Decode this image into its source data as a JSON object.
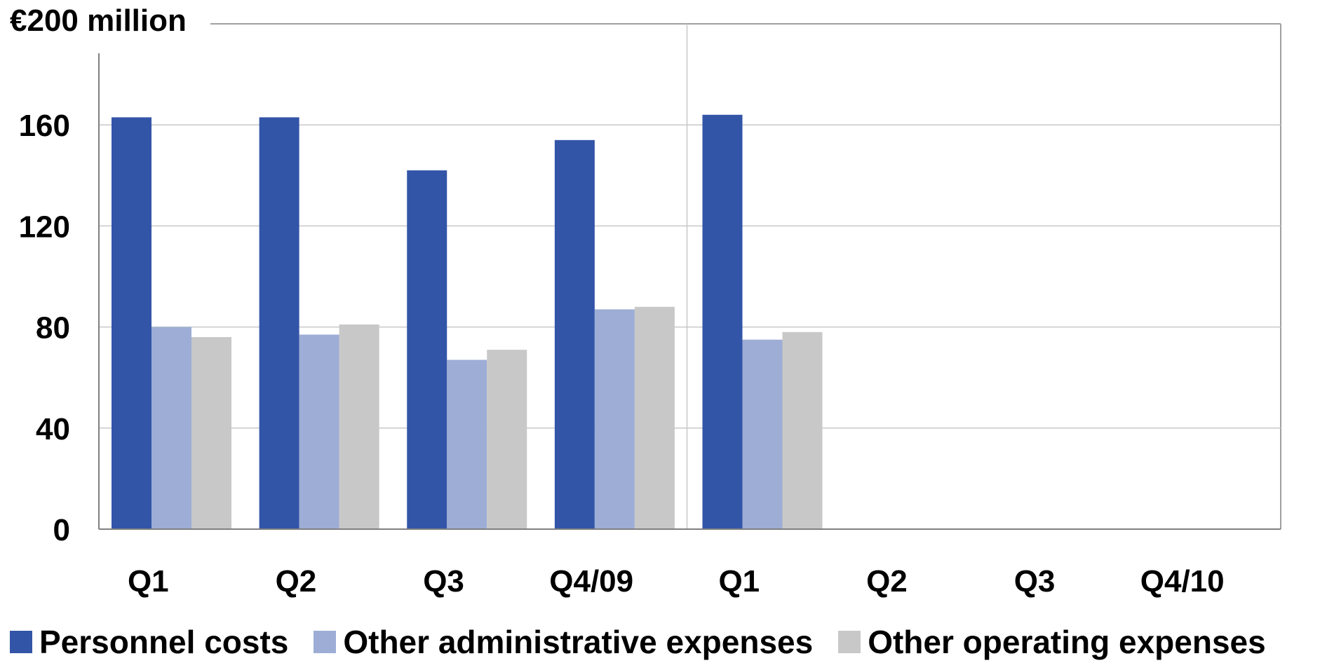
{
  "chart_data": {
    "type": "bar",
    "title": "",
    "ylabel": "€200 million",
    "xlabel": "",
    "categories": [
      "Q1",
      "Q2",
      "Q3",
      "Q4/09",
      "Q1",
      "Q2",
      "Q3",
      "Q4/10"
    ],
    "ylim": [
      0,
      200
    ],
    "yticks": [
      "0",
      "40",
      "80",
      "120",
      "160"
    ],
    "grid": true,
    "legend_position": "bottom",
    "series": [
      {
        "name": "Personnel costs",
        "color": "#3355a8",
        "values": [
          163,
          163,
          142,
          154,
          164,
          null,
          null,
          null
        ]
      },
      {
        "name": "Other administrative expenses",
        "color": "#9dadd5",
        "values": [
          80,
          77,
          67,
          87,
          75,
          null,
          null,
          null
        ]
      },
      {
        "name": "Other operating expenses",
        "color": "#c8c8c8",
        "values": [
          76,
          81,
          71,
          88,
          78,
          null,
          null,
          null
        ]
      }
    ]
  }
}
